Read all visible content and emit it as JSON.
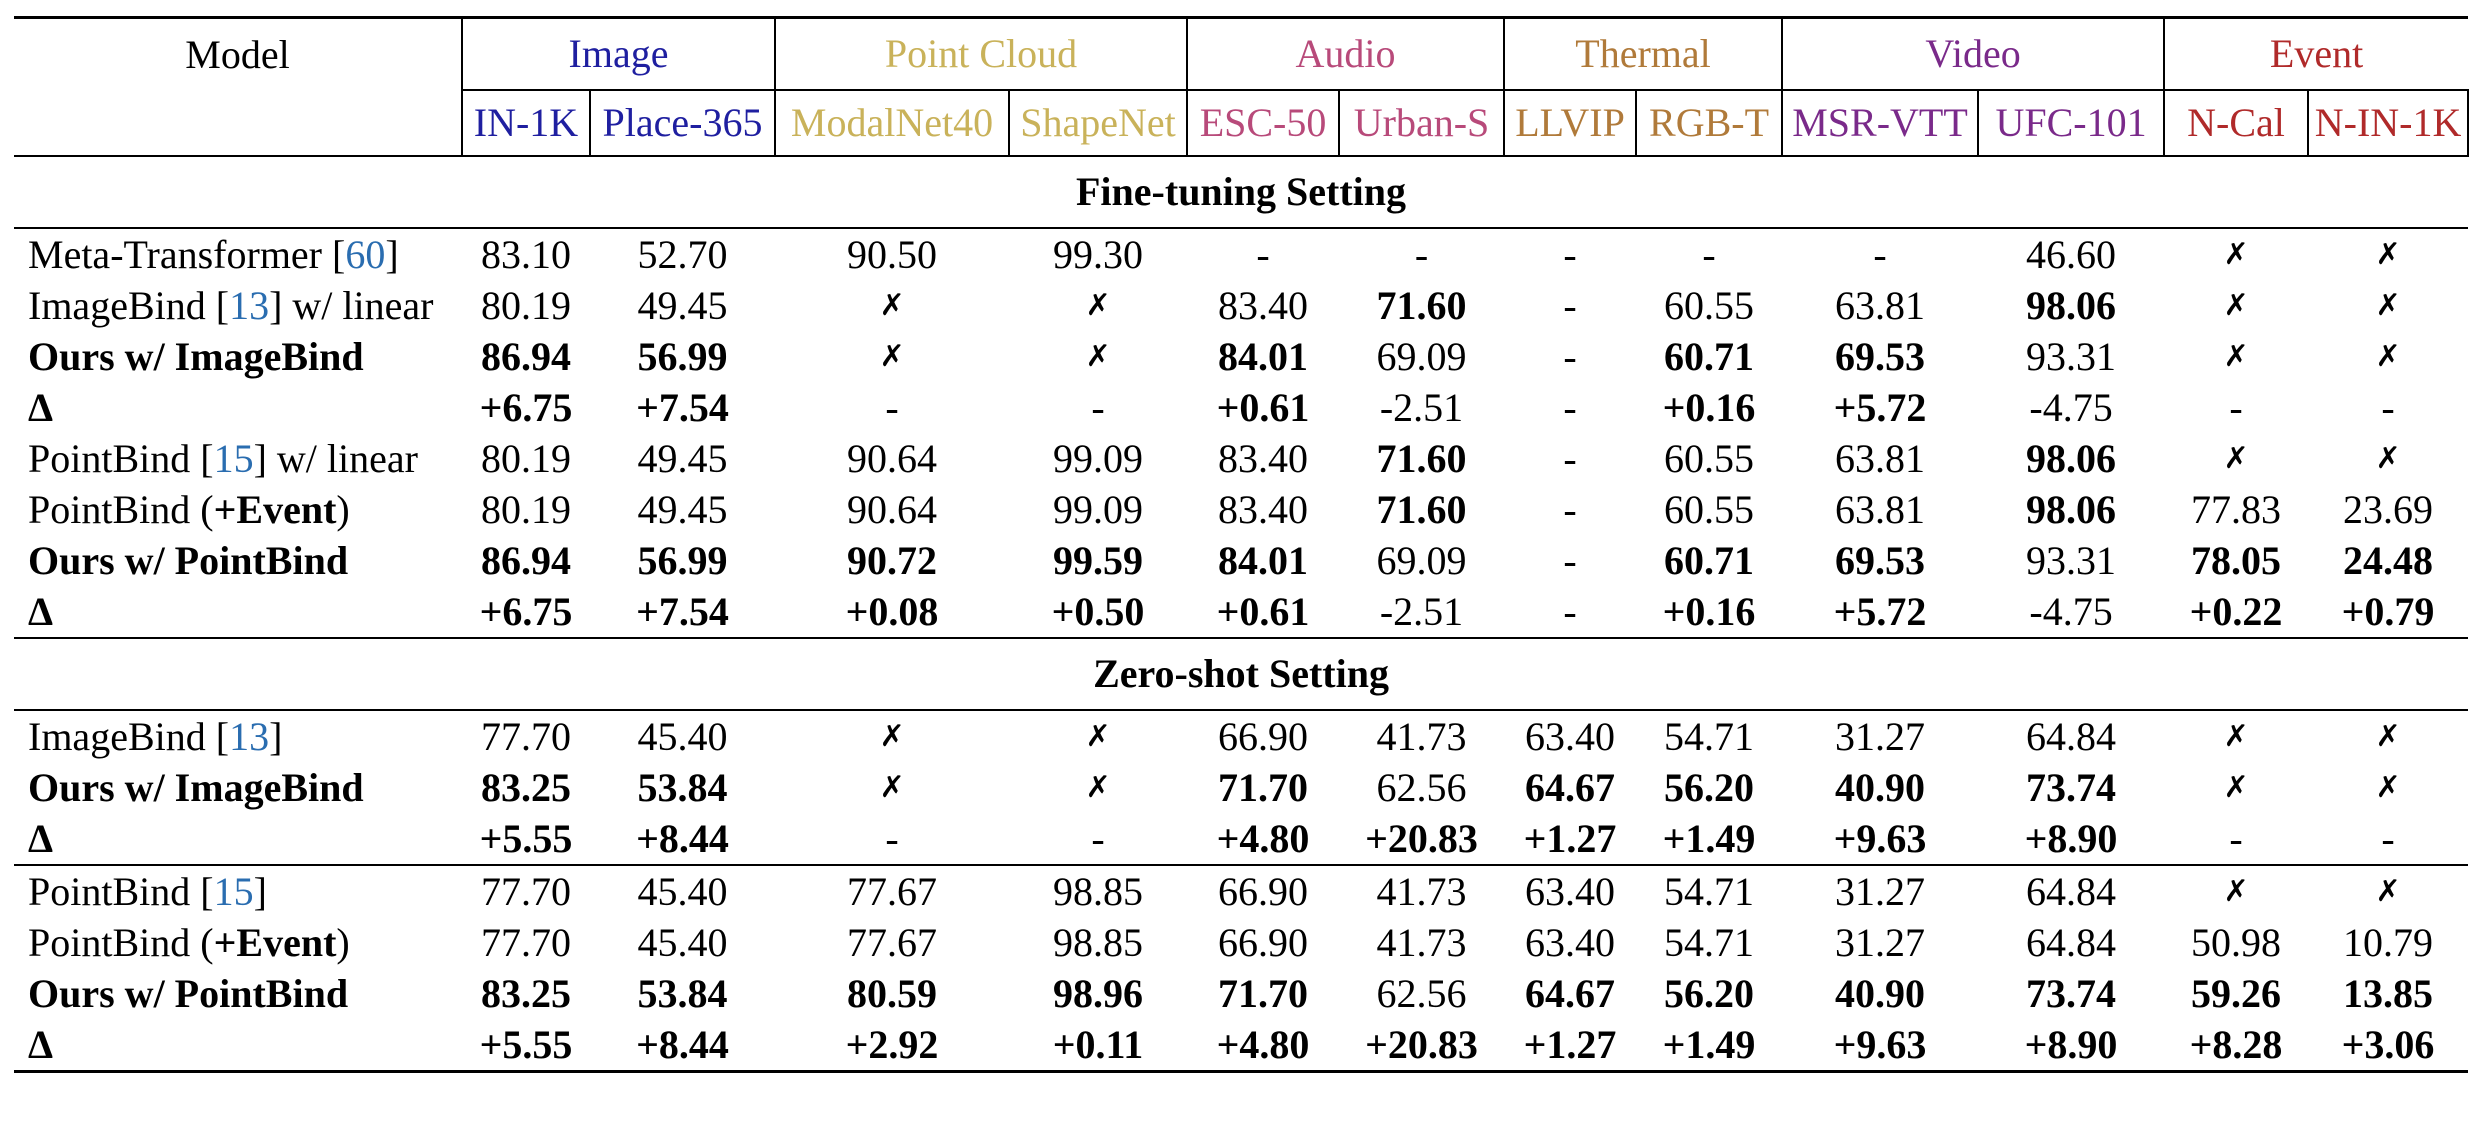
{
  "colors": {
    "image": "#1f1fa0",
    "point_cloud": "#c9b25a",
    "audio": "#b84a7a",
    "thermal": "#b07a3a",
    "video": "#7a2a8a",
    "event": "#b02a2a",
    "cite": "#2a6db0"
  },
  "header": {
    "model": "Model",
    "groups": [
      "Image",
      "Point Cloud",
      "Audio",
      "Thermal",
      "Video",
      "Event"
    ],
    "columns": [
      "IN-1K",
      "Place-365",
      "ModalNet40",
      "ShapeNet",
      "ESC-50",
      "Urban-S",
      "LLVIP",
      "RGB-T",
      "MSR-VTT",
      "UFC-101",
      "N-Cal",
      "N-IN-1K"
    ]
  },
  "sections": [
    {
      "title": "Fine-tuning Setting",
      "rows": [
        {
          "pre": "Meta-Transformer [",
          "cite": "60",
          "post": "]",
          "bold_name": false,
          "cells": [
            "83.10",
            "52.70",
            "90.50",
            "99.30",
            "-",
            "-",
            "-",
            "-",
            "-",
            "46.60",
            "✗",
            "✗"
          ],
          "bold": []
        },
        {
          "pre": "ImageBind [",
          "cite": "13",
          "post": "] w/ linear",
          "bold_name": false,
          "cells": [
            "80.19",
            "49.45",
            "✗",
            "✗",
            "83.40",
            "71.60",
            "-",
            "60.55",
            "63.81",
            "98.06",
            "✗",
            "✗"
          ],
          "bold": [
            5,
            9
          ]
        },
        {
          "pre": "Ours w/ ImageBind",
          "cite": "",
          "post": "",
          "bold_name": true,
          "cells": [
            "86.94",
            "56.99",
            "✗",
            "✗",
            "84.01",
            "69.09",
            "-",
            "60.71",
            "69.53",
            "93.31",
            "✗",
            "✗"
          ],
          "bold": [
            0,
            1,
            4,
            7,
            8
          ]
        },
        {
          "pre": "Δ",
          "cite": "",
          "post": "",
          "bold_name": true,
          "cells": [
            "+6.75",
            "+7.54",
            "-",
            "-",
            "+0.61",
            "-2.51",
            "-",
            "+0.16",
            "+5.72",
            "-4.75",
            "-",
            "-"
          ],
          "bold": [
            0,
            1,
            4,
            7,
            8
          ]
        },
        {
          "pre": "PointBind [",
          "cite": "15",
          "post": "] w/ linear",
          "bold_name": false,
          "cells": [
            "80.19",
            "49.45",
            "90.64",
            "99.09",
            "83.40",
            "71.60",
            "-",
            "60.55",
            "63.81",
            "98.06",
            "✗",
            "✗"
          ],
          "bold": [
            5,
            9
          ]
        },
        {
          "pre": "PointBind (",
          "cite": "",
          "post": ")",
          "mid_bold": "+Event",
          "bold_name": false,
          "cells": [
            "80.19",
            "49.45",
            "90.64",
            "99.09",
            "83.40",
            "71.60",
            "-",
            "60.55",
            "63.81",
            "98.06",
            "77.83",
            "23.69"
          ],
          "bold": [
            5,
            9
          ]
        },
        {
          "pre": "Ours w/ PointBind",
          "cite": "",
          "post": "",
          "bold_name": true,
          "cells": [
            "86.94",
            "56.99",
            "90.72",
            "99.59",
            "84.01",
            "69.09",
            "-",
            "60.71",
            "69.53",
            "93.31",
            "78.05",
            "24.48"
          ],
          "bold": [
            0,
            1,
            2,
            3,
            4,
            7,
            8,
            10,
            11
          ]
        },
        {
          "pre": "Δ",
          "cite": "",
          "post": "",
          "bold_name": true,
          "cells": [
            "+6.75",
            "+7.54",
            "+0.08",
            "+0.50",
            "+0.61",
            "-2.51",
            "-",
            "+0.16",
            "+5.72",
            "-4.75",
            "+0.22",
            "+0.79"
          ],
          "bold": [
            0,
            1,
            2,
            3,
            4,
            7,
            8,
            10,
            11
          ]
        }
      ]
    },
    {
      "title": "Zero-shot Setting",
      "rows": [
        {
          "pre": "ImageBind [",
          "cite": "13",
          "post": "]",
          "bold_name": false,
          "cells": [
            "77.70",
            "45.40",
            "✗",
            "✗",
            "66.90",
            "41.73",
            "63.40",
            "54.71",
            "31.27",
            "64.84",
            "✗",
            "✗"
          ],
          "bold": []
        },
        {
          "pre": "Ours w/ ImageBind",
          "cite": "",
          "post": "",
          "bold_name": true,
          "cells": [
            "83.25",
            "53.84",
            "✗",
            "✗",
            "71.70",
            "62.56",
            "64.67",
            "56.20",
            "40.90",
            "73.74",
            "✗",
            "✗"
          ],
          "bold": [
            0,
            1,
            4,
            6,
            7,
            8,
            9
          ]
        },
        {
          "pre": "Δ",
          "cite": "",
          "post": "",
          "bold_name": true,
          "cells": [
            "+5.55",
            "+8.44",
            "-",
            "-",
            "+4.80",
            "+20.83",
            "+1.27",
            "+1.49",
            "+9.63",
            "+8.90",
            "-",
            "-"
          ],
          "bold": [
            0,
            1,
            4,
            5,
            6,
            7,
            8,
            9
          ]
        },
        {
          "pre": "PointBind [",
          "cite": "15",
          "post": "]",
          "bold_name": false,
          "rule_before": true,
          "cells": [
            "77.70",
            "45.40",
            "77.67",
            "98.85",
            "66.90",
            "41.73",
            "63.40",
            "54.71",
            "31.27",
            "64.84",
            "✗",
            "✗"
          ],
          "bold": []
        },
        {
          "pre": "PointBind (",
          "cite": "",
          "post": ")",
          "mid_bold": "+Event",
          "bold_name": false,
          "cells": [
            "77.70",
            "45.40",
            "77.67",
            "98.85",
            "66.90",
            "41.73",
            "63.40",
            "54.71",
            "31.27",
            "64.84",
            "50.98",
            "10.79"
          ],
          "bold": []
        },
        {
          "pre": "Ours w/ PointBind",
          "cite": "",
          "post": "",
          "bold_name": true,
          "cells": [
            "83.25",
            "53.84",
            "80.59",
            "98.96",
            "71.70",
            "62.56",
            "64.67",
            "56.20",
            "40.90",
            "73.74",
            "59.26",
            "13.85"
          ],
          "bold": [
            0,
            1,
            2,
            3,
            4,
            6,
            7,
            8,
            9,
            10,
            11
          ]
        },
        {
          "pre": "Δ",
          "cite": "",
          "post": "",
          "bold_name": true,
          "cells": [
            "+5.55",
            "+8.44",
            "+2.92",
            "+0.11",
            "+4.80",
            "+20.83",
            "+1.27",
            "+1.49",
            "+9.63",
            "+8.90",
            "+8.28",
            "+3.06"
          ],
          "bold": [
            0,
            1,
            2,
            3,
            4,
            5,
            6,
            7,
            8,
            9,
            10,
            11
          ]
        }
      ]
    }
  ]
}
